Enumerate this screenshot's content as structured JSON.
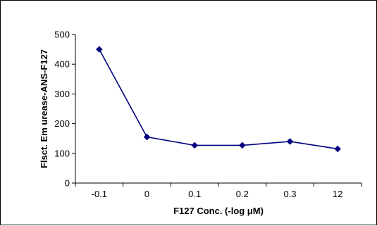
{
  "chart_data": {
    "type": "line",
    "title": "",
    "xlabel": "F127 Conc. (-log μM)",
    "ylabel": "Flsct. Em urease-ANS-F127",
    "categories": [
      "-0.1",
      "0",
      "0.1",
      "0.2",
      "0.3",
      "12"
    ],
    "series": [
      {
        "values": [
          450,
          155,
          127,
          127,
          140,
          115
        ],
        "color": "#000080",
        "marker": "diamond"
      }
    ],
    "ylim": [
      0,
      500
    ],
    "yticks": [
      0,
      100,
      200,
      300,
      400,
      500
    ],
    "grid": false,
    "legend": "none"
  }
}
